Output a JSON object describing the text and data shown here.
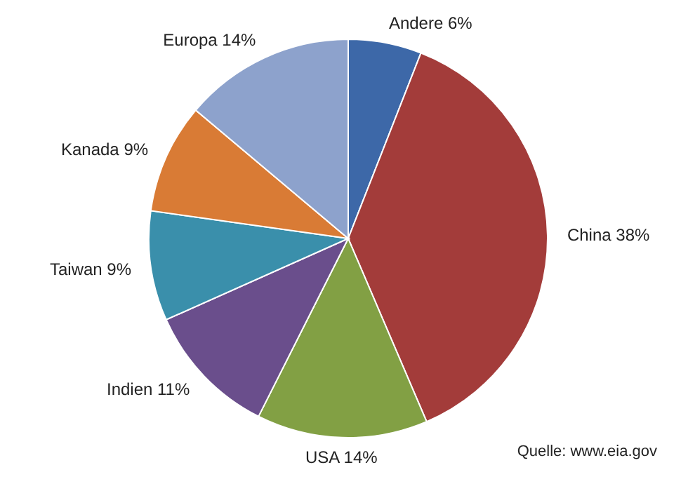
{
  "chart_data": {
    "type": "pie",
    "categories": [
      "Andere",
      "China",
      "USA",
      "Indien",
      "Taiwan",
      "Kanada",
      "Europa"
    ],
    "values": [
      6,
      38,
      14,
      11,
      9,
      9,
      14
    ],
    "value_labels": [
      "6%",
      "38%",
      "14%",
      "11%",
      "9%",
      "9%",
      "14%"
    ],
    "colors": [
      "#3d68a8",
      "#a33c3a",
      "#82a044",
      "#6a4e8c",
      "#3a8fab",
      "#d97b35",
      "#8da2cc"
    ],
    "annotations": [
      "Quelle: www.eia.gov"
    ]
  }
}
